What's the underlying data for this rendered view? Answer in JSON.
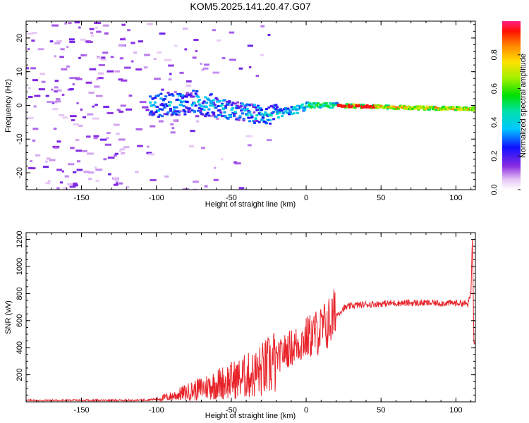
{
  "title": "KOM5.2025.141.20.47.G07",
  "colors": {
    "snr_line": "#e8242b",
    "frame": "#000000"
  },
  "chart_data": [
    {
      "type": "heatmap",
      "xlabel": "Height of straight line (km)",
      "ylabel": "Frequency (Hz)",
      "xlim": [
        -187,
        113
      ],
      "ylim": [
        -25,
        25
      ],
      "xticks": [
        -150,
        -100,
        -50,
        0,
        50,
        100
      ],
      "yticks": [
        -20,
        -10,
        0,
        10,
        20
      ],
      "colorbar": {
        "label": "Normalized spectral amplitude",
        "range": [
          0,
          1
        ],
        "ticks": [
          "0.0",
          "0.2",
          "0.4",
          "0.6",
          "0.8"
        ],
        "tick_values": [
          0,
          0.2,
          0.4,
          0.6,
          0.8
        ]
      },
      "ridge": {
        "description_points": [
          [
            -100,
            0
          ],
          [
            -90,
            0.5
          ],
          [
            -75,
            1
          ],
          [
            -65,
            0
          ],
          [
            -55,
            -1
          ],
          [
            -45,
            -2
          ],
          [
            -35,
            -2.5
          ],
          [
            -25,
            -3
          ],
          [
            -15,
            -2
          ],
          [
            -5,
            -1
          ],
          [
            0,
            0
          ],
          [
            20,
            0
          ],
          [
            50,
            -0.5
          ],
          [
            80,
            -0.8
          ],
          [
            110,
            -1
          ]
        ],
        "peak_amplitude": 1.0,
        "strongest_range": [
          20,
          110
        ]
      }
    },
    {
      "type": "line",
      "xlabel": "Height of straight line (km)",
      "ylabel": "SNR (v/v)",
      "xlim": [
        -187,
        113
      ],
      "ylim": [
        0,
        1250
      ],
      "xticks": [
        -150,
        -100,
        -50,
        0,
        50,
        100
      ],
      "yticks": [
        200,
        400,
        600,
        800,
        1000,
        1200
      ],
      "series": [
        {
          "x": [
            -187,
            -170,
            -150,
            -130,
            -110,
            -100,
            -90,
            -80,
            -70,
            -60,
            -50,
            -45,
            -40,
            -35,
            -30,
            -25,
            -20,
            -15,
            -10,
            -5,
            0,
            5,
            10,
            15,
            20,
            25,
            30,
            40,
            50,
            60,
            70,
            80,
            90,
            100,
            105,
            108,
            110,
            111,
            112,
            113
          ],
          "y": [
            10,
            10,
            10,
            10,
            12,
            20,
            40,
            70,
            100,
            130,
            160,
            170,
            190,
            200,
            230,
            260,
            310,
            370,
            400,
            430,
            470,
            500,
            530,
            580,
            640,
            690,
            710,
            720,
            725,
            730,
            730,
            730,
            730,
            730,
            730,
            720,
            800,
            1220,
            450,
            450
          ]
        }
      ]
    }
  ]
}
